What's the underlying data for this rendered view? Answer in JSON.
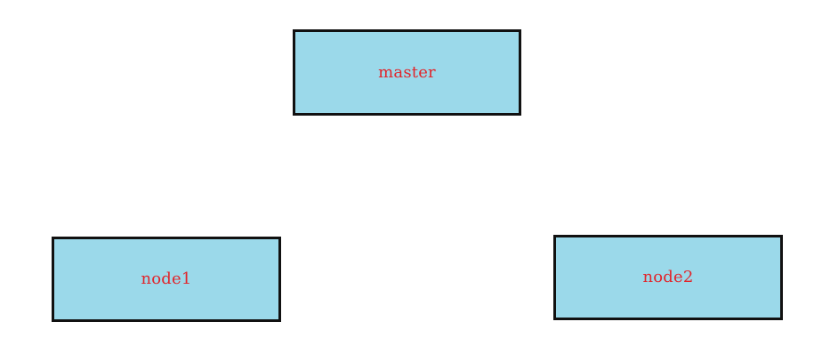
{
  "diagram": {
    "colors": {
      "node_fill": "#9BD9EA",
      "node_border": "#111111",
      "label_color": "#E1252B",
      "background": "#FFFFFF"
    },
    "nodes": [
      {
        "id": "master",
        "label": "master"
      },
      {
        "id": "node1",
        "label": "node1"
      },
      {
        "id": "node2",
        "label": "node2"
      }
    ]
  }
}
